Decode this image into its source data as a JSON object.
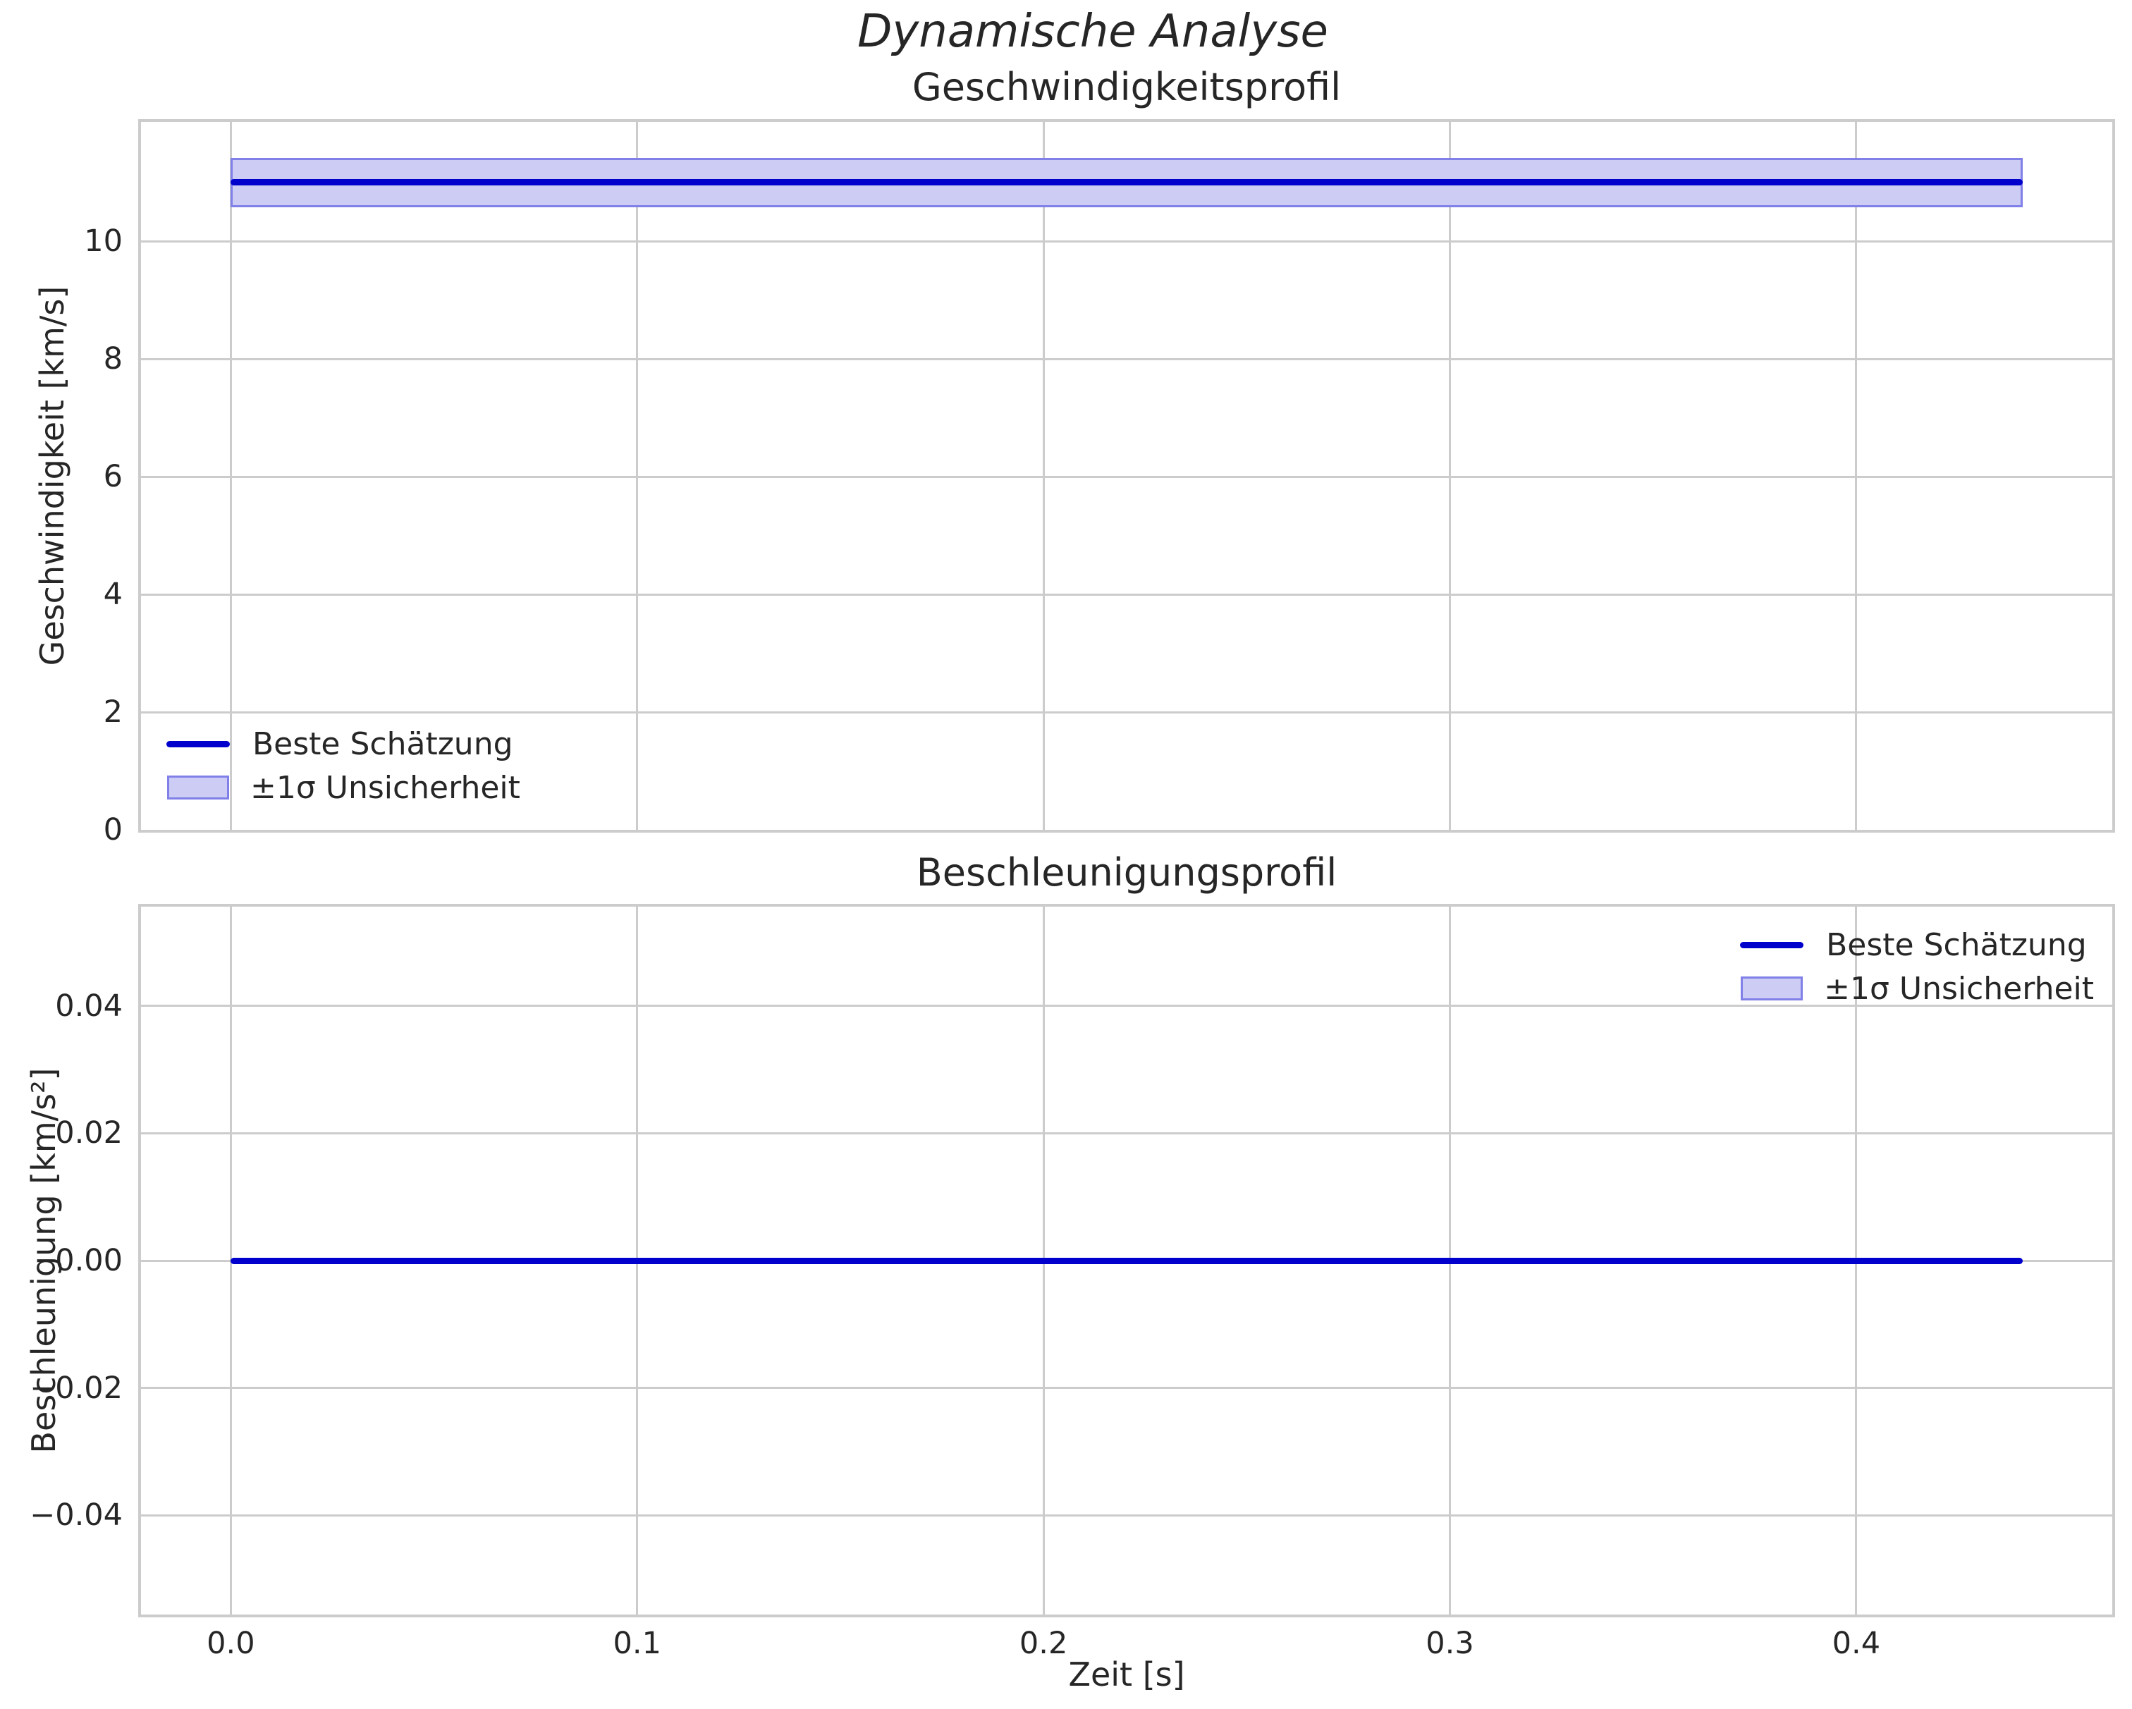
{
  "figure": {
    "title": "Dynamische Analyse"
  },
  "colors": {
    "line": "#0000cd",
    "band_fill": "#ccccf5",
    "band_edge": "#8080e8",
    "grid": "#cccccc",
    "spine": "#cccccc",
    "text": "#262626"
  },
  "chart_data": [
    {
      "type": "line",
      "title": "Geschwindigkeitsprofil",
      "xlabel": "",
      "ylabel": "Geschwindigkeit [km/s]",
      "xlim": [
        -0.0221,
        0.463
      ],
      "ylim": [
        0,
        12.03
      ],
      "x_start": 0.0,
      "x_end": 0.441,
      "xticks": [
        {
          "value": 0.0,
          "label": "0.0"
        },
        {
          "value": 0.1,
          "label": "0.1"
        },
        {
          "value": 0.2,
          "label": "0.2"
        },
        {
          "value": 0.3,
          "label": "0.3"
        },
        {
          "value": 0.4,
          "label": "0.4"
        }
      ],
      "show_xtick_labels": false,
      "yticks": [
        {
          "value": 0,
          "label": "0"
        },
        {
          "value": 2,
          "label": "2"
        },
        {
          "value": 4,
          "label": "4"
        },
        {
          "value": 6,
          "label": "6"
        },
        {
          "value": 8,
          "label": "8"
        },
        {
          "value": 10,
          "label": "10"
        }
      ],
      "series": [
        {
          "name": "Beste Schätzung",
          "value": 11.0
        }
      ],
      "band": {
        "name": "±1σ Unsicherheit",
        "low": 10.58,
        "high": 11.42
      },
      "grid": true,
      "legend": {
        "position": "lower left",
        "entries": [
          {
            "swatch": "line",
            "label": "Beste Schätzung"
          },
          {
            "swatch": "band",
            "label": "±1σ Unsicherheit"
          }
        ]
      }
    },
    {
      "type": "line",
      "title": "Beschleunigungsprofil",
      "xlabel": "Zeit [s]",
      "ylabel": "Beschleunigung [km/s²]",
      "xlim": [
        -0.0221,
        0.463
      ],
      "ylim": [
        -0.0556,
        0.0556
      ],
      "x_start": 0.0,
      "x_end": 0.441,
      "xticks": [
        {
          "value": 0.0,
          "label": "0.0"
        },
        {
          "value": 0.1,
          "label": "0.1"
        },
        {
          "value": 0.2,
          "label": "0.2"
        },
        {
          "value": 0.3,
          "label": "0.3"
        },
        {
          "value": 0.4,
          "label": "0.4"
        }
      ],
      "show_xtick_labels": true,
      "yticks": [
        {
          "value": 0.04,
          "label": "0.04"
        },
        {
          "value": 0.02,
          "label": "0.02"
        },
        {
          "value": 0.0,
          "label": "0.00"
        },
        {
          "value": -0.02,
          "label": "−0.02"
        },
        {
          "value": -0.04,
          "label": "−0.04"
        }
      ],
      "series": [
        {
          "name": "Beste Schätzung",
          "value": 0.0
        }
      ],
      "band": {
        "name": "±1σ Unsicherheit",
        "low": 0.0,
        "high": 0.0
      },
      "grid": true,
      "legend": {
        "position": "upper right",
        "entries": [
          {
            "swatch": "line",
            "label": "Beste Schätzung"
          },
          {
            "swatch": "band",
            "label": "±1σ Unsicherheit"
          }
        ]
      }
    }
  ]
}
